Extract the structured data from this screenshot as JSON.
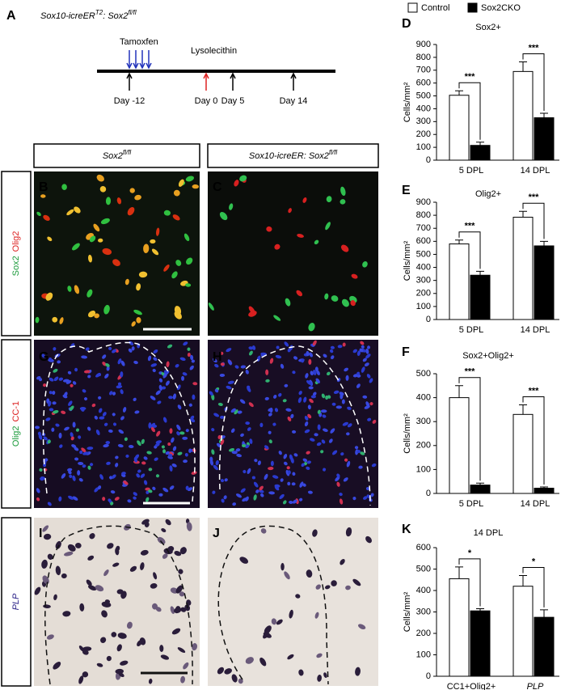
{
  "figure": {
    "panel_a": {
      "letter": "A",
      "title": [
        "Sox10-icreER",
        "T2",
        ": Sox2",
        "fl/fl"
      ],
      "tamoxifen": "Tamoxfen",
      "lysolecithin": "Lysolecithin",
      "days": [
        "Day -12",
        "Day 0",
        "Day 5",
        "Day 14"
      ]
    },
    "column_headers": [
      [
        "Sox2",
        "fl/fl"
      ],
      [
        "Sox10-icreER: Sox2",
        "fl/fl"
      ]
    ],
    "row_labels": [
      [
        "Sox2",
        "Olig2"
      ],
      [
        "Olig2",
        "CC-1"
      ],
      [
        "PLP"
      ]
    ],
    "image_letters": [
      "B",
      "C",
      "G",
      "H",
      "I",
      "J"
    ]
  },
  "chart_data": [
    {
      "type": "bar",
      "panel": "D",
      "title": "Sox2+",
      "ylabel": "Cells/mm²",
      "categories": [
        "5 DPL",
        "14 DPL"
      ],
      "series": [
        {
          "name": "Control",
          "color": "#ffffff",
          "values": [
            505,
            690
          ],
          "errors": [
            35,
            75
          ]
        },
        {
          "name": "Sox2CKO",
          "color": "#000000",
          "values": [
            115,
            330
          ],
          "errors": [
            25,
            35
          ]
        }
      ],
      "ylim": [
        0,
        900
      ],
      "yticks": [
        0,
        100,
        200,
        300,
        400,
        500,
        600,
        700,
        800,
        900
      ],
      "significance": [
        "***",
        "***"
      ]
    },
    {
      "type": "bar",
      "panel": "E",
      "title": "Olig2+",
      "ylabel": "Cells/mm²",
      "categories": [
        "5 DPL",
        "14 DPL"
      ],
      "series": [
        {
          "color": "#ffffff",
          "values": [
            580,
            785
          ],
          "errors": [
            30,
            45
          ]
        },
        {
          "color": "#000000",
          "values": [
            340,
            565
          ],
          "errors": [
            30,
            35
          ]
        }
      ],
      "ylim": [
        0,
        900
      ],
      "yticks": [
        0,
        100,
        200,
        300,
        400,
        500,
        600,
        700,
        800,
        900
      ],
      "significance": [
        "***",
        "***"
      ]
    },
    {
      "type": "bar",
      "panel": "F",
      "title": "Sox2+Olig2+",
      "ylabel": "Cells/mm²",
      "categories": [
        "5 DPL",
        "14 DPL"
      ],
      "series": [
        {
          "color": "#ffffff",
          "values": [
            400,
            330
          ],
          "errors": [
            50,
            40
          ]
        },
        {
          "color": "#000000",
          "values": [
            35,
            22
          ],
          "errors": [
            8,
            5
          ]
        }
      ],
      "ylim": [
        0,
        500
      ],
      "yticks": [
        0,
        100,
        200,
        300,
        400,
        500
      ],
      "significance": [
        "***",
        "***"
      ]
    },
    {
      "type": "bar",
      "panel": "K",
      "title": "14 DPL",
      "ylabel": "Cells/mm²",
      "categories": [
        "CC1+Olig2+",
        "PLP"
      ],
      "series": [
        {
          "color": "#ffffff",
          "values": [
            455,
            420
          ],
          "errors": [
            55,
            50
          ]
        },
        {
          "color": "#000000",
          "values": [
            305,
            275
          ],
          "errors": [
            10,
            35
          ]
        }
      ],
      "ylim": [
        0,
        600
      ],
      "yticks": [
        0,
        100,
        200,
        300,
        400,
        500,
        600
      ],
      "significance": [
        "*",
        "*"
      ]
    }
  ]
}
